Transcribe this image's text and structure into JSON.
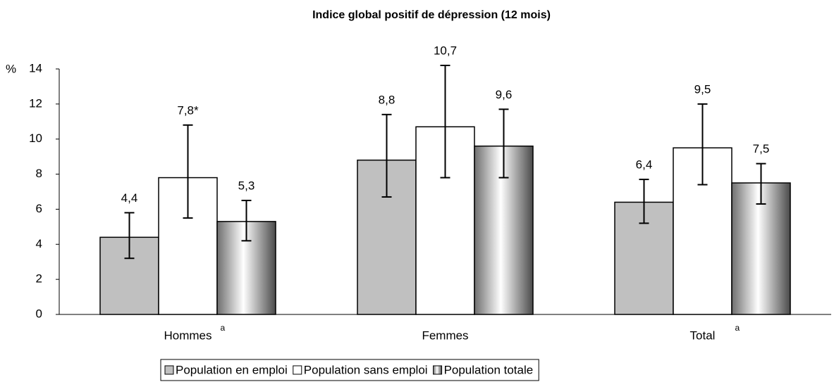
{
  "chart_data": {
    "type": "bar",
    "title": "Indice global positif de dépression (12 mois)",
    "y_axis_label": "%",
    "categories": [
      "Hommes",
      "Femmes",
      "Total"
    ],
    "category_superscripts": [
      "a",
      null,
      "a"
    ],
    "ylim": [
      0,
      14
    ],
    "yticks": [
      0,
      2,
      4,
      6,
      8,
      10,
      12,
      14
    ],
    "legend": "bottom",
    "series": [
      {
        "name": "Population en emploi",
        "color": "#c0c0c0",
        "style": "solid",
        "values": [
          4.4,
          8.8,
          6.4
        ],
        "value_labels": [
          "4,4",
          "8,8",
          "6,4"
        ],
        "ci_low": [
          3.2,
          6.7,
          5.2
        ],
        "ci_high": [
          5.8,
          11.4,
          7.7
        ]
      },
      {
        "name": "Population sans emploi",
        "color": "#ffffff",
        "style": "solid",
        "values": [
          7.8,
          10.7,
          9.5
        ],
        "value_labels": [
          "7,8*",
          "10,7",
          "9,5"
        ],
        "ci_low": [
          5.5,
          7.8,
          7.4
        ],
        "ci_high": [
          10.8,
          14.2,
          12.0
        ]
      },
      {
        "name": "Population totale",
        "color": "#8c8c8c",
        "style": "gradient",
        "values": [
          5.3,
          9.6,
          7.5
        ],
        "value_labels": [
          "5,3",
          "9,6",
          "7,5"
        ],
        "ci_low": [
          4.2,
          7.8,
          6.3
        ],
        "ci_high": [
          6.5,
          11.7,
          8.6
        ]
      }
    ]
  }
}
